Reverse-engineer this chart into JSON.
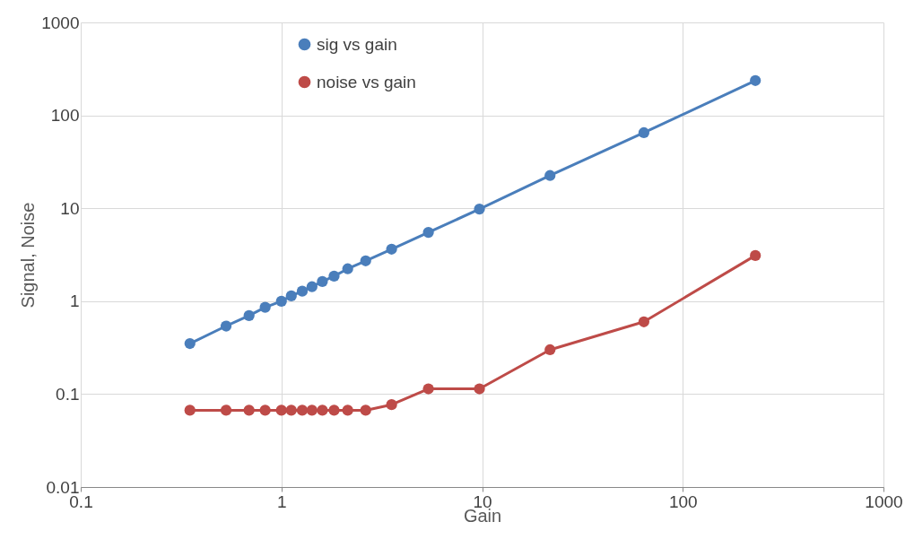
{
  "chart_data": {
    "type": "line",
    "xlabel": "Gain",
    "ylabel": "Signal, Noise",
    "x": [
      0.35,
      0.53,
      0.69,
      0.83,
      1.0,
      1.12,
      1.27,
      1.42,
      1.6,
      1.83,
      2.14,
      2.63,
      3.54,
      5.4,
      9.7,
      21.8,
      64,
      230
    ],
    "series": [
      {
        "name": "sig vs gain",
        "color": "#4a7ebb",
        "values": [
          0.35,
          0.54,
          0.7,
          0.86,
          1.0,
          1.14,
          1.28,
          1.43,
          1.63,
          1.86,
          2.23,
          2.72,
          3.63,
          5.5,
          9.8,
          22.5,
          65,
          237
        ]
      },
      {
        "name": "noise vs gain",
        "color": "#be4b48",
        "values": [
          0.067,
          0.067,
          0.067,
          0.067,
          0.067,
          0.067,
          0.067,
          0.067,
          0.067,
          0.067,
          0.067,
          0.067,
          0.077,
          0.114,
          0.114,
          0.3,
          0.6,
          3.1
        ]
      }
    ],
    "log": "xy",
    "xlim": [
      0.1,
      1000
    ],
    "xticks": [
      0.1,
      1,
      10,
      100,
      1000
    ],
    "ylim": [
      0.01,
      1000
    ],
    "yticks": [
      0.01,
      0.1,
      1,
      10,
      100,
      1000
    ],
    "grid": true,
    "legend": "top",
    "marker": "circle",
    "line_style": "solid"
  }
}
